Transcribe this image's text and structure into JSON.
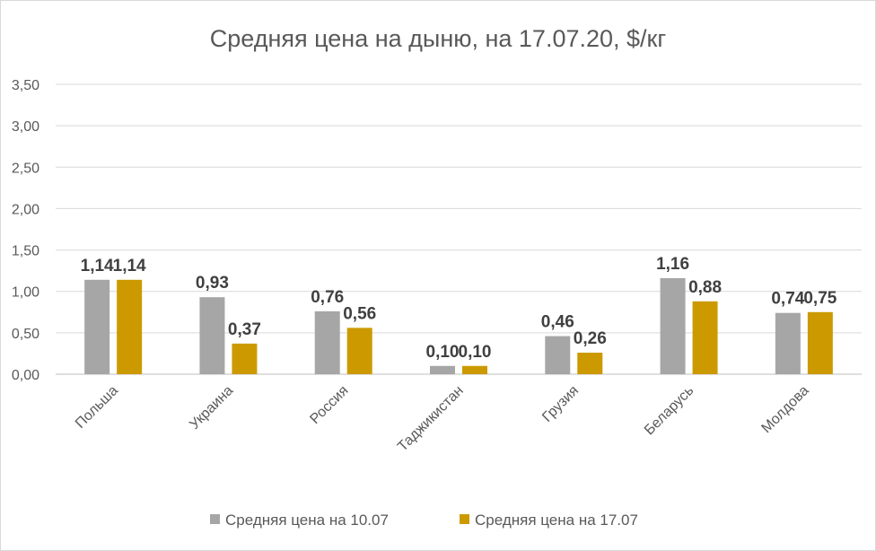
{
  "chart_data": {
    "type": "bar",
    "title": "Средняя цена на дыню, на 17.07.20, $/кг",
    "xlabel": "",
    "ylabel": "",
    "ylim": [
      0,
      3.5
    ],
    "yticks": [
      "0,00",
      "0,50",
      "1,00",
      "1,50",
      "2,00",
      "2,50",
      "3,00",
      "3,50"
    ],
    "grid": true,
    "legend_position": "bottom",
    "categories": [
      "Польша",
      "Украина",
      "Россия",
      "Таджикистан",
      "Грузия",
      "Беларусь",
      "Молдова"
    ],
    "series": [
      {
        "name": "Средняя цена на 10.07",
        "color": "#a6a6a6",
        "values": [
          1.14,
          0.93,
          0.76,
          0.1,
          0.46,
          1.16,
          0.74
        ],
        "labels": [
          "1,14",
          "0,93",
          "0,76",
          "0,10",
          "0,46",
          "1,16",
          "0,74"
        ]
      },
      {
        "name": "Средняя цена на 17.07",
        "color": "#cc9a00",
        "values": [
          1.14,
          0.37,
          0.56,
          0.1,
          0.26,
          0.88,
          0.75
        ],
        "labels": [
          "1,14",
          "0,37",
          "0,56",
          "0,10",
          "0,26",
          "0,88",
          "0,75"
        ]
      }
    ]
  }
}
